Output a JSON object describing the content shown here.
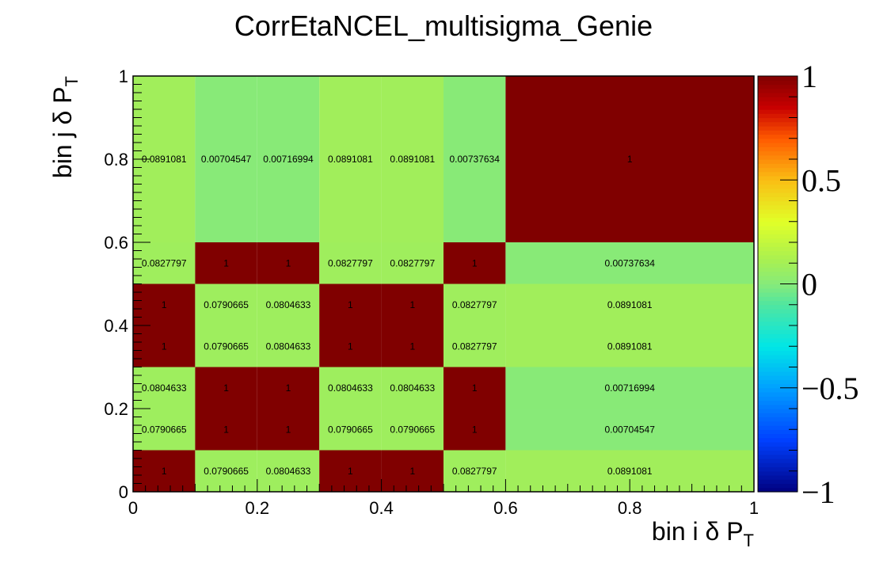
{
  "chart_data": {
    "type": "heatmap",
    "title": "CorrEtaNCEL_multisigma_Genie",
    "xlabel": "bin i δ P",
    "xlabel_sub": "T",
    "ylabel": "bin j δ P",
    "ylabel_sub": "T",
    "xlim": [
      0,
      1
    ],
    "ylim": [
      0,
      1
    ],
    "zlim": [
      -1,
      1
    ],
    "colormap": "jet-like (dark blue → cyan → green → yellow → red → dark red)",
    "x_edges": [
      0,
      0.1,
      0.2,
      0.3,
      0.4,
      0.5,
      0.6,
      1.0
    ],
    "y_edges": [
      0,
      0.1,
      0.2,
      0.3,
      0.4,
      0.5,
      0.6,
      1.0
    ],
    "x_ticks": [
      "0",
      "0.2",
      "0.4",
      "0.6",
      "0.8",
      "1"
    ],
    "y_ticks": [
      "0",
      "0.2",
      "0.4",
      "0.6",
      "0.8",
      "1"
    ],
    "colorbar_ticks": [
      "1",
      "0.5",
      "0",
      "−0.5",
      "−1"
    ],
    "values": [
      [
        1,
        0.0790665,
        0.0804633,
        1,
        1,
        0.0827797,
        0.0891081
      ],
      [
        0.0790665,
        1,
        1,
        0.0790665,
        0.0790665,
        1,
        0.00704547
      ],
      [
        0.0804633,
        1,
        1,
        0.0804633,
        0.0804633,
        1,
        0.00716994
      ],
      [
        1,
        0.0790665,
        0.0804633,
        1,
        1,
        0.0827797,
        0.0891081
      ],
      [
        1,
        0.0790665,
        0.0804633,
        1,
        1,
        0.0827797,
        0.0891081
      ],
      [
        0.0827797,
        1,
        1,
        0.0827797,
        0.0827797,
        1,
        0.00737634
      ],
      [
        0.0891081,
        0.00704547,
        0.00716994,
        0.0891081,
        0.0891081,
        0.00737634,
        1
      ]
    ],
    "labels": [
      [
        "1",
        "0.0790665",
        "0.0804633",
        "1",
        "1",
        "0.0827797",
        "0.0891081"
      ],
      [
        "0.0790665",
        "1",
        "1",
        "0.0790665",
        "0.0790665",
        "1",
        "0.00704547"
      ],
      [
        "0.0804633",
        "1",
        "1",
        "0.0804633",
        "0.0804633",
        "1",
        "0.00716994"
      ],
      [
        "1",
        "0.0790665",
        "0.0804633",
        "1",
        "1",
        "0.0827797",
        "0.0891081"
      ],
      [
        "1",
        "0.0790665",
        "0.0804633",
        "1",
        "1",
        "0.0827797",
        "0.0891081"
      ],
      [
        "0.0827797",
        "1",
        "1",
        "0.0827797",
        "0.0827797",
        "1",
        "0.00737634"
      ],
      [
        "0.0891081",
        "0.00704547",
        "0.00716994",
        "0.0891081",
        "0.0891081",
        "0.00737634",
        "1"
      ]
    ]
  }
}
